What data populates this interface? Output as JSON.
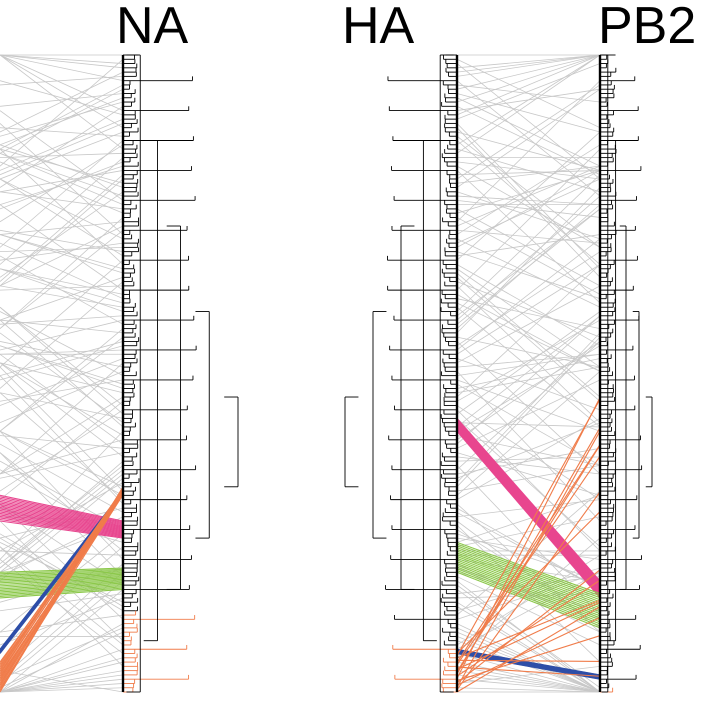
{
  "segments": [
    {
      "id": "na",
      "label": "NA"
    },
    {
      "id": "ha",
      "label": "HA"
    },
    {
      "id": "pb2",
      "label": "PB2"
    }
  ],
  "colors": {
    "background_link": "#c8c8c8",
    "tree": "#000000",
    "clade_pink": "#e8468f",
    "clade_green": "#8cc84b",
    "clade_blue": "#2f4fa8",
    "clade_orange": "#f07c4a"
  },
  "tip_count": 150,
  "clades": [
    {
      "color": "clade_pink",
      "left_tips": [
        104,
        110
      ],
      "right_tips": [
        110,
        114
      ]
    },
    {
      "color": "clade_green",
      "left_tips": [
        122,
        128
      ],
      "right_tips": [
        121,
        126
      ]
    },
    {
      "color": "clade_blue",
      "left_tips": [
        140,
        141
      ],
      "right_tips": [
        103,
        104
      ]
    },
    {
      "color": "clade_orange",
      "left_tips": [
        143,
        150
      ],
      "right_tips": [
        102,
        104
      ]
    }
  ],
  "clades_right": [
    {
      "color": "clade_pink",
      "left_tips": [
        86,
        89
      ],
      "right_tips": [
        124,
        128
      ]
    },
    {
      "color": "clade_green",
      "left_tips": [
        115,
        122
      ],
      "right_tips": [
        127,
        135
      ]
    },
    {
      "color": "clade_blue",
      "left_tips": [
        140,
        141
      ],
      "right_tips": [
        146,
        147
      ]
    },
    {
      "color": "clade_orange",
      "left_tips": [
        141,
        150
      ],
      "right_tips": [
        80,
        150
      ]
    }
  ]
}
